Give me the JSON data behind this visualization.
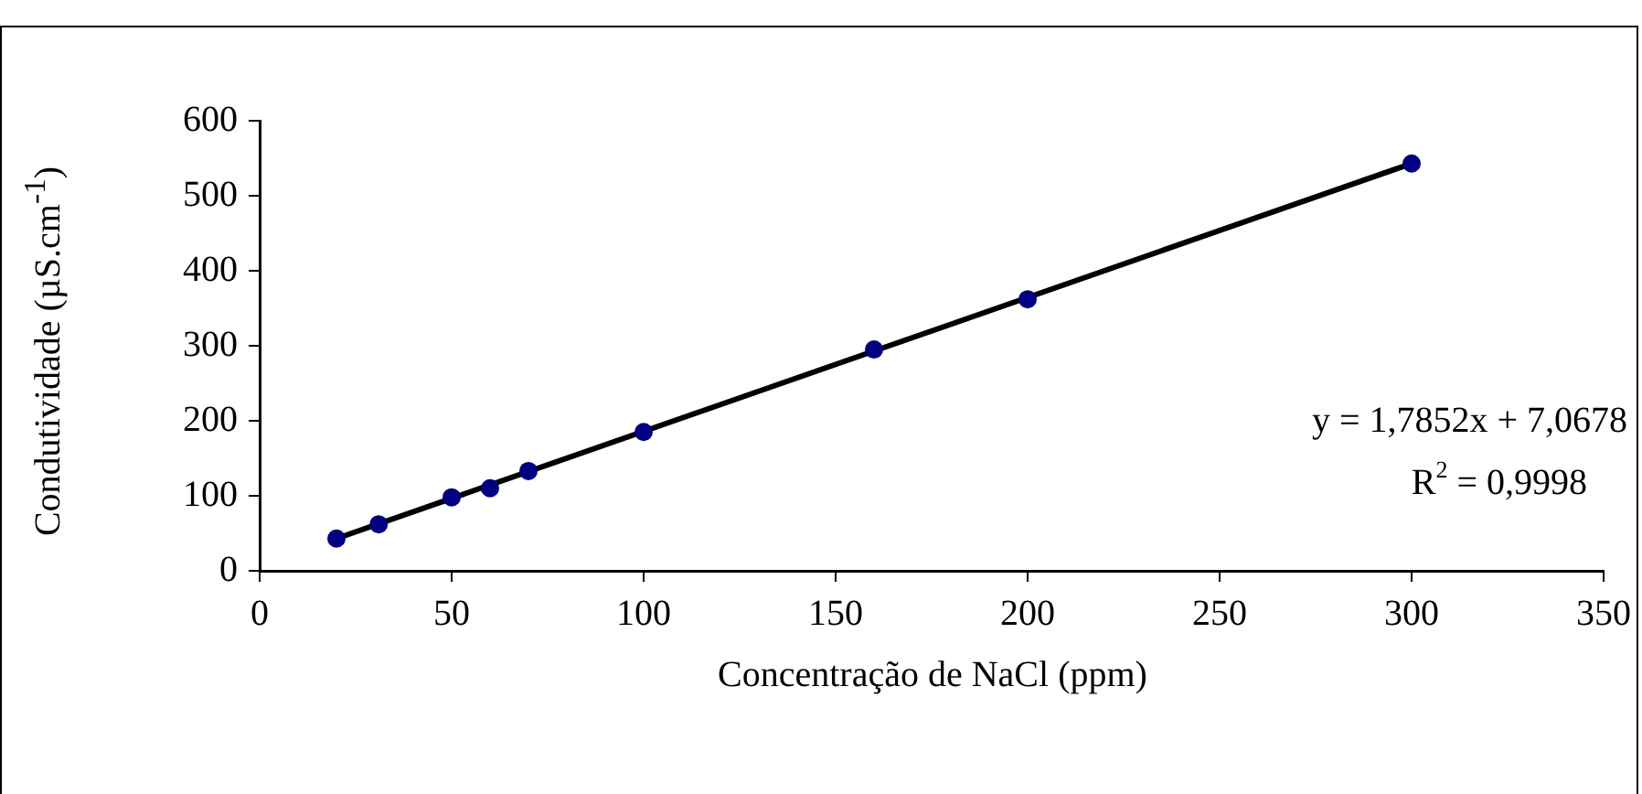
{
  "chart_data": {
    "type": "scatter",
    "xlabel": "Concentração de  NaCl (ppm)",
    "ylabel": "Condutividade (µS.cm$^{-1}$)",
    "series": [
      {
        "type": "scatter",
        "color": "#000080",
        "x": [
          20,
          31,
          50,
          60,
          70,
          100,
          160,
          200,
          300
        ],
        "values": [
          43,
          62,
          98,
          110,
          133,
          185,
          295,
          362,
          543
        ],
        "marker": "circle"
      },
      {
        "type": "line",
        "color": "#000000",
        "x": [
          20,
          300
        ],
        "values": [
          43,
          543
        ],
        "marker": "none",
        "line_style": "solid"
      }
    ],
    "xlim": [
      0,
      350
    ],
    "xticks": [
      0,
      50,
      100,
      150,
      200,
      250,
      300,
      350
    ],
    "ylim": [
      0,
      600
    ],
    "yticks": [
      0,
      100,
      200,
      300,
      400,
      500,
      600
    ],
    "grid": false,
    "legend": false,
    "annotations": [
      "y = 1,7852x + 7,0678",
      "R$^{2}$ = 0,9998"
    ]
  }
}
